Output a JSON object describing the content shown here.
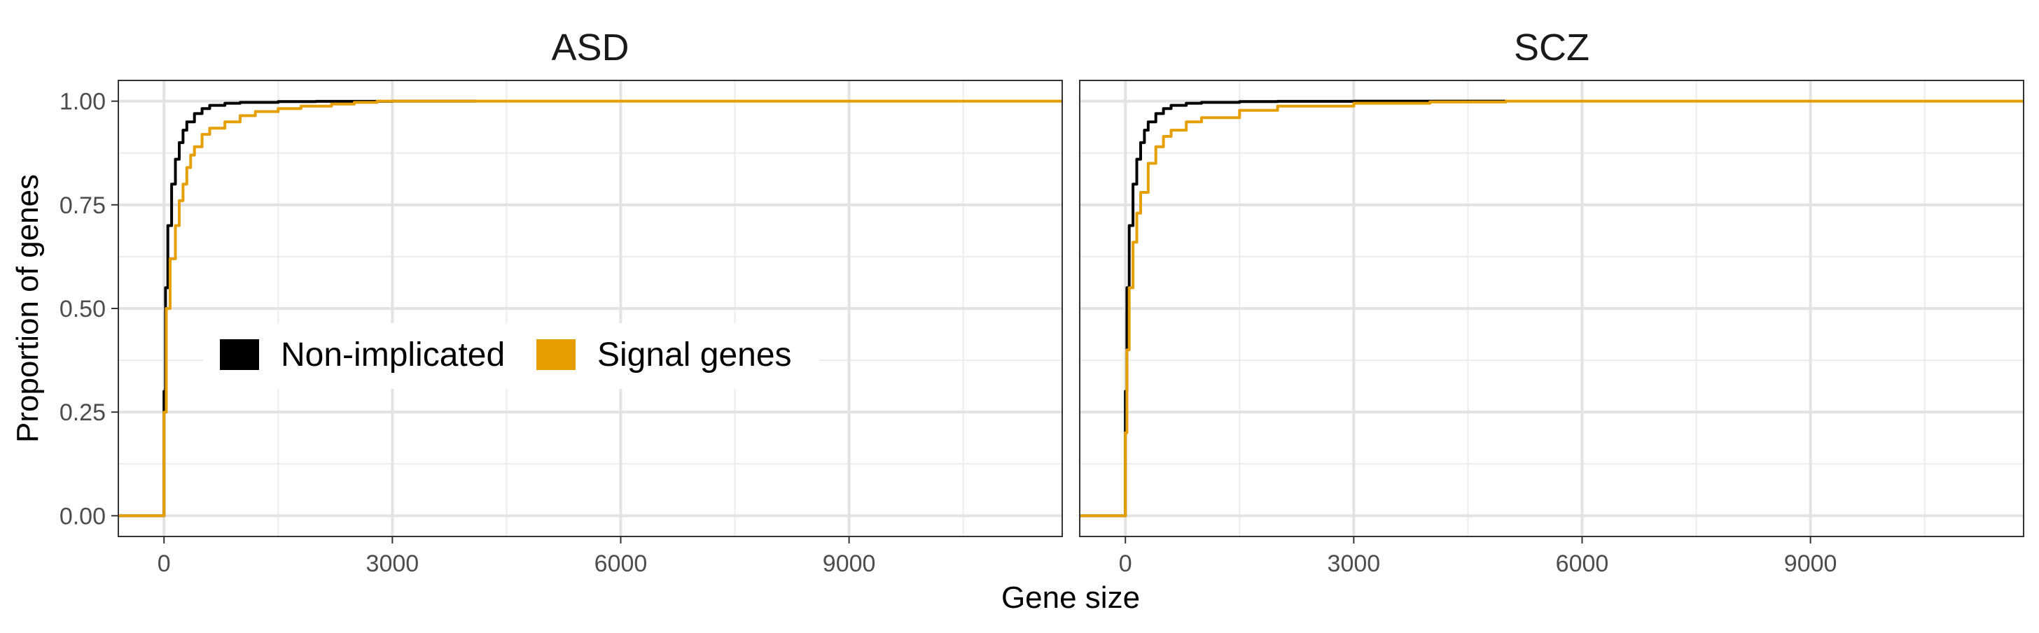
{
  "chart_data": {
    "type": "line",
    "subtype": "step-ecdf",
    "shared_axes": {
      "xlabel": "Gene size",
      "ylabel": "Proportion of genes",
      "xlim": [
        -600,
        11800
      ],
      "ylim": [
        -0.05,
        1.05
      ],
      "x_ticks": [
        0,
        3000,
        6000,
        9000
      ],
      "x_tick_labels": [
        "0",
        "3000",
        "6000",
        "9000"
      ],
      "y_ticks": [
        0.0,
        0.25,
        0.5,
        0.75,
        1.0
      ],
      "y_tick_labels": [
        "0.00",
        "0.25",
        "0.50",
        "0.75",
        "1.00"
      ],
      "grid": true
    },
    "legend": {
      "placement": "inside-left (first panel)",
      "entries": [
        {
          "label": "Non-implicated",
          "color": "#000000"
        },
        {
          "label": "Signal genes",
          "color": "#E69F00"
        }
      ]
    },
    "panels": [
      {
        "title": "ASD",
        "series": [
          {
            "name": "Non-implicated",
            "color": "#000000",
            "x": [
              -600,
              0,
              0,
              20,
              50,
              100,
              150,
              200,
              250,
              300,
              400,
              500,
              600,
              800,
              1000,
              1500,
              2000,
              3000,
              4100
            ],
            "y": [
              0.0,
              0.0,
              0.3,
              0.55,
              0.7,
              0.8,
              0.86,
              0.9,
              0.93,
              0.95,
              0.97,
              0.982,
              0.99,
              0.995,
              0.997,
              0.999,
              0.9995,
              1.0,
              1.0
            ]
          },
          {
            "name": "Signal genes",
            "color": "#E69F00",
            "x": [
              -600,
              0,
              0,
              30,
              80,
              150,
              200,
              250,
              300,
              350,
              400,
              500,
              600,
              800,
              1000,
              1200,
              1500,
              1800,
              2200,
              2500,
              2800,
              11800
            ],
            "y": [
              0.0,
              0.0,
              0.25,
              0.5,
              0.62,
              0.7,
              0.76,
              0.8,
              0.84,
              0.87,
              0.89,
              0.92,
              0.935,
              0.95,
              0.965,
              0.975,
              0.982,
              0.988,
              0.993,
              0.997,
              1.0,
              1.0
            ]
          }
        ]
      },
      {
        "title": "SCZ",
        "series": [
          {
            "name": "Non-implicated",
            "color": "#000000",
            "x": [
              -600,
              0,
              0,
              20,
              50,
              100,
              150,
              200,
              250,
              300,
              400,
              500,
              600,
              800,
              1000,
              1500,
              2000,
              3000,
              4000,
              5000
            ],
            "y": [
              0.0,
              0.0,
              0.3,
              0.55,
              0.7,
              0.8,
              0.86,
              0.9,
              0.93,
              0.95,
              0.97,
              0.982,
              0.99,
              0.995,
              0.997,
              0.999,
              0.9995,
              1.0,
              1.0,
              1.0
            ]
          },
          {
            "name": "Signal genes",
            "color": "#E69F00",
            "x": [
              -600,
              0,
              0,
              20,
              50,
              100,
              150,
              200,
              300,
              400,
              500,
              600,
              800,
              1000,
              1500,
              2000,
              3000,
              4000,
              5000,
              11800
            ],
            "y": [
              0.0,
              0.0,
              0.2,
              0.4,
              0.55,
              0.66,
              0.73,
              0.78,
              0.85,
              0.89,
              0.915,
              0.93,
              0.95,
              0.96,
              0.978,
              0.988,
              0.995,
              0.998,
              1.0,
              1.0
            ]
          }
        ]
      }
    ]
  }
}
